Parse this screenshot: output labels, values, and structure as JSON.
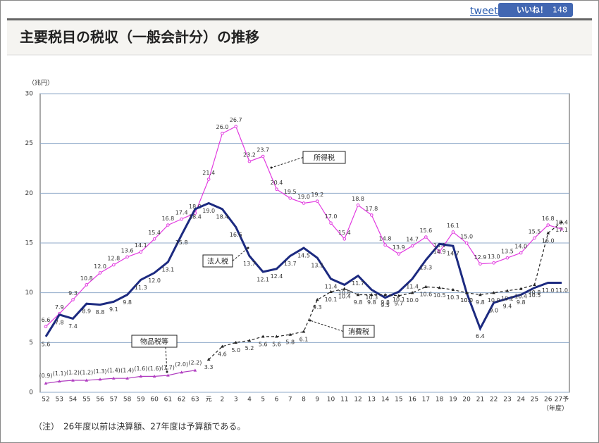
{
  "header": {
    "tweet": "tweet",
    "like": "いいね！",
    "like_count": 148,
    "title": "主要税目の税収（一般会計分）の推移"
  },
  "chart_data": {
    "type": "line",
    "unit_label": "（兆円）",
    "x_label": "（年度）",
    "categories": [
      "52",
      "53",
      "54",
      "55",
      "56",
      "57",
      "58",
      "59",
      "60",
      "61",
      "62",
      "63",
      "元",
      "2",
      "3",
      "4",
      "5",
      "6",
      "7",
      "8",
      "9",
      "10",
      "11",
      "12",
      "13",
      "14",
      "15",
      "16",
      "17",
      "18",
      "19",
      "20",
      "21",
      "22",
      "23",
      "24",
      "25",
      "26",
      "27予"
    ],
    "ylim": [
      0,
      30
    ],
    "yticks": [
      0,
      5,
      10,
      15,
      20,
      25,
      30
    ],
    "grid": true,
    "series": [
      {
        "name": "所得税",
        "color": "#e23be0",
        "marker": "circle",
        "values": [
          6.6,
          7.9,
          9.3,
          10.8,
          12.0,
          12.8,
          13.6,
          14.1,
          15.4,
          16.8,
          17.4,
          18.0,
          21.4,
          26.0,
          26.7,
          23.2,
          23.7,
          20.4,
          19.5,
          19.0,
          19.2,
          17.0,
          15.4,
          18.8,
          17.8,
          14.8,
          13.9,
          14.7,
          15.6,
          14.1,
          16.1,
          15.0,
          12.9,
          13.0,
          13.5,
          14.0,
          15.5,
          16.8,
          16.4
        ],
        "value_labels": [
          "6.6",
          "7.9",
          "9.3",
          "10.8",
          "12.0",
          "12.8",
          "13.6",
          "14.1",
          "15.4",
          "16.8",
          "17.4",
          "18.0",
          "21.4",
          "26.0",
          "26.7",
          "23.2",
          "23.7",
          "20.4",
          "19.5",
          "19.0",
          "19.2",
          "17.0",
          "15.4",
          "18.8",
          "17.8",
          "14.8",
          "13.9",
          "14.7",
          "15.6",
          "14.1",
          "16.1",
          "15.0",
          "12.9",
          "13.0",
          "13.5",
          "14.0",
          "15.5",
          "16.8",
          "16.4"
        ]
      },
      {
        "name": "法人税",
        "color": "#1c2a80",
        "marker": "none",
        "values": [
          5.6,
          7.8,
          7.4,
          8.9,
          8.8,
          9.1,
          9.8,
          11.3,
          12.0,
          13.1,
          15.8,
          18.4,
          19.0,
          18.4,
          16.6,
          13.7,
          12.1,
          12.4,
          13.7,
          14.5,
          13.5,
          11.4,
          10.8,
          11.7,
          10.3,
          9.5,
          10.1,
          11.4,
          13.3,
          14.9,
          14.7,
          10.0,
          6.4,
          9.0,
          9.4,
          9.8,
          10.5,
          11.0,
          11.0
        ],
        "value_labels": [
          "5.6",
          "7.8",
          "7.4",
          "8.9",
          "8.8",
          "9.1",
          "9.8",
          "11.3",
          "12.0",
          "13.1",
          "15.8",
          "18.4",
          "19.0",
          "18.4",
          "16.6",
          "13.7",
          "12.1",
          "12.4",
          "13.7",
          "14.5",
          "13.5",
          "11.4",
          "10.8",
          "11.7",
          "10.3",
          "9.5",
          "10.1",
          "11.4",
          "13.3",
          "14.9",
          "14.7",
          "10.0",
          "6.4",
          "9.0",
          "9.4",
          "9.8",
          "10.5",
          "11.0",
          "11.0"
        ]
      },
      {
        "name": "消費税",
        "color": "#222222",
        "marker": "triangle",
        "dash": true,
        "values": [
          null,
          null,
          null,
          null,
          null,
          null,
          null,
          null,
          null,
          null,
          null,
          null,
          3.3,
          4.6,
          5.0,
          5.2,
          5.6,
          5.6,
          5.8,
          6.1,
          9.3,
          10.1,
          10.4,
          9.8,
          9.8,
          9.8,
          9.7,
          10.0,
          10.6,
          10.5,
          10.3,
          10.0,
          9.8,
          10.0,
          10.2,
          10.4,
          10.8,
          16.0,
          17.1
        ],
        "value_labels": [
          null,
          null,
          null,
          null,
          null,
          null,
          null,
          null,
          null,
          null,
          null,
          null,
          "3.3",
          "4.6",
          "5.0",
          "5.2",
          "5.6",
          "5.6",
          "5.8",
          "6.1",
          "9.3",
          "10.1",
          "10.4",
          "9.8",
          "9.8",
          "9.8",
          "9.7",
          "10.0",
          "10.6",
          "10.5",
          "10.3",
          "10.0",
          "9.8",
          "10.0",
          "10.2",
          "10.4",
          "10.8",
          "16.0",
          "17.1"
        ]
      },
      {
        "name": "物品税等",
        "color": "#b03cc0",
        "marker": "triangle",
        "values": [
          0.9,
          1.1,
          1.2,
          1.2,
          1.3,
          1.4,
          1.4,
          1.6,
          1.6,
          1.7,
          2.0,
          2.2,
          null,
          null,
          null,
          null,
          null,
          null,
          null,
          null,
          null,
          null,
          null,
          null,
          null,
          null,
          null,
          null,
          null,
          null,
          null,
          null,
          null,
          null,
          null,
          null,
          null,
          null,
          null
        ],
        "value_labels": [
          "(0.9)",
          "(1.1)",
          "(1.2)",
          "(1.2)",
          "(1.3)",
          "(1.4)",
          "(1.4)",
          "(1.6)",
          "(1.6)",
          "(1.7)",
          "(2.0)",
          "(2.2)",
          null,
          null,
          null,
          null,
          null,
          null,
          null,
          null,
          null,
          null,
          null,
          null,
          null,
          null,
          null,
          null,
          null,
          null,
          null,
          null,
          null,
          null,
          null,
          null,
          null,
          null,
          null
        ]
      }
    ]
  },
  "note": "（注）　26年度以前は決算額、27年度は予算額である。"
}
